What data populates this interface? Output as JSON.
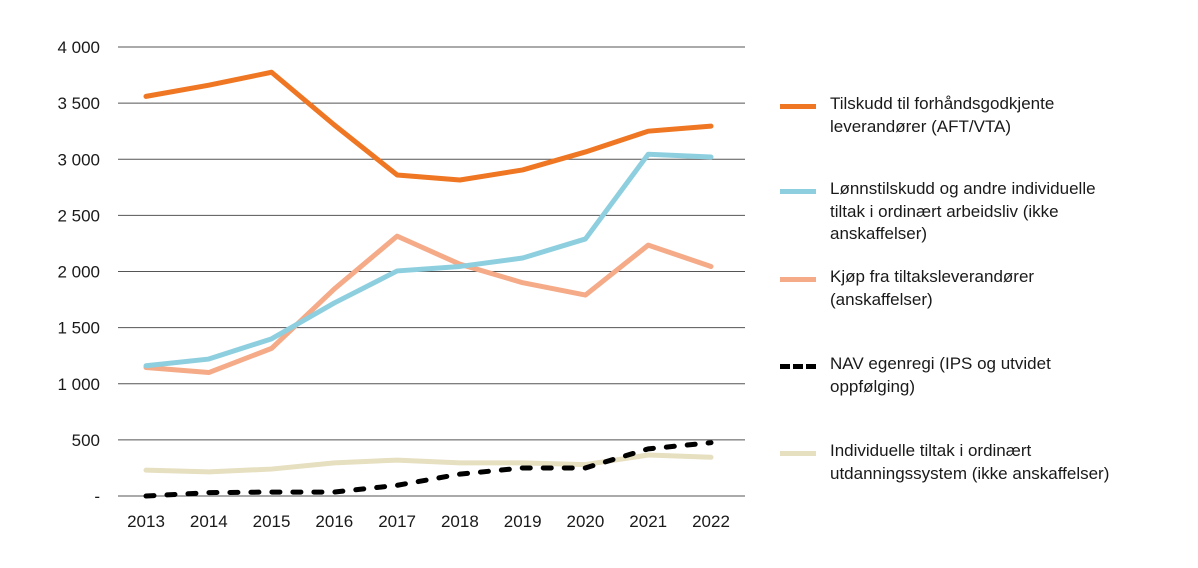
{
  "chart_data": {
    "type": "line",
    "title": "",
    "xlabel": "",
    "ylabel": "",
    "x": [
      "2013",
      "2014",
      "2015",
      "2016",
      "2017",
      "2018",
      "2019",
      "2020",
      "2021",
      "2022"
    ],
    "ylim": [
      0,
      4000
    ],
    "yticks": [
      0,
      500,
      1000,
      1500,
      2000,
      2500,
      3000,
      3500,
      4000
    ],
    "ytick_labels": [
      "-",
      "500",
      "1 000",
      "1 500",
      "2 000",
      "2 500",
      "3 000",
      "3 500",
      "4 000"
    ],
    "grid": "horizontal",
    "legend_position": "right",
    "series": [
      {
        "name": "Tilskudd til forhåndsgodkjente leverandører (AFT/VTA)",
        "color": "#ef7622",
        "style": "solid",
        "values": [
          3560,
          3660,
          3775,
          3305,
          2860,
          2815,
          2905,
          3065,
          3250,
          3295
        ]
      },
      {
        "name": "Lønnstilskudd og andre individuelle tiltak i ordinært arbeidsliv (ikke anskaffelser)",
        "color": "#8dcfdf",
        "style": "solid",
        "values": [
          1160,
          1220,
          1400,
          1720,
          2005,
          2045,
          2120,
          2290,
          3045,
          3020
        ]
      },
      {
        "name": "Kjøp fra tiltaksleverandører (anskaffelser)",
        "color": "#f5aa88",
        "style": "solid",
        "values": [
          1145,
          1100,
          1315,
          1845,
          2315,
          2065,
          1900,
          1790,
          2235,
          2045
        ]
      },
      {
        "name": "NAV egenregi (IPS og utvidet oppfølging)",
        "color": "#000000",
        "style": "dashed",
        "values": [
          0,
          30,
          35,
          35,
          95,
          195,
          250,
          250,
          420,
          475
        ]
      },
      {
        "name": "Individuelle tiltak i ordinært utdanningssystem (ikke anskaffelser)",
        "color": "#e6dfc0",
        "style": "solid",
        "values": [
          230,
          215,
          240,
          295,
          320,
          295,
          295,
          280,
          365,
          345
        ]
      }
    ]
  }
}
